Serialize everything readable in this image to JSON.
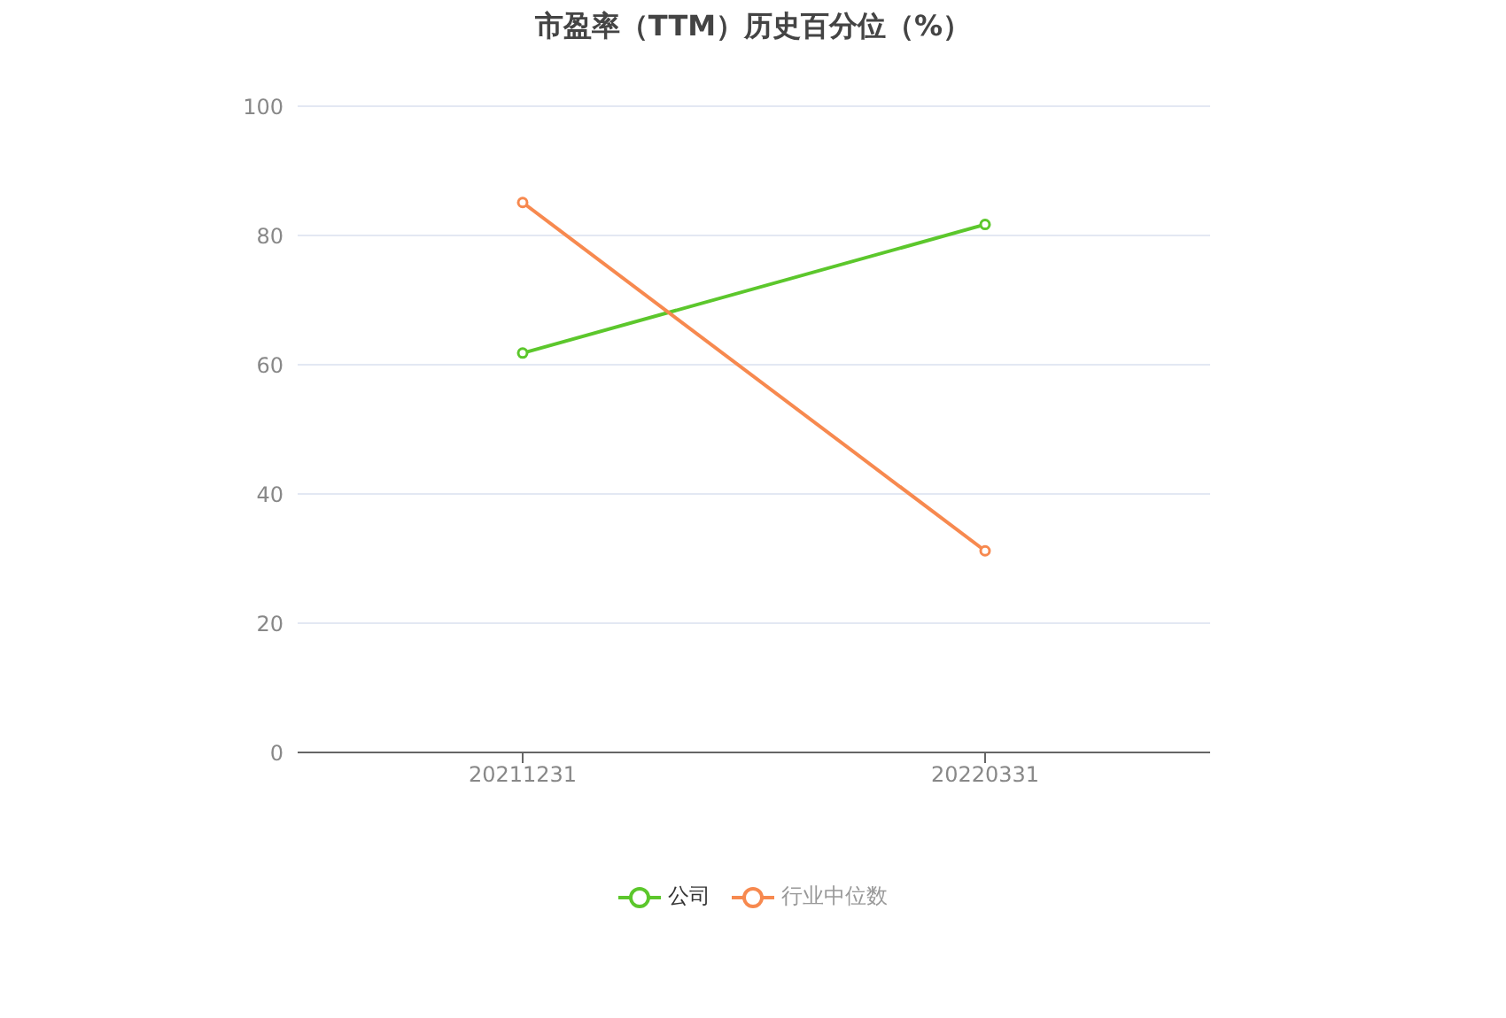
{
  "chart_data": {
    "type": "line",
    "title": "市盈率（TTM）历史百分位（%）",
    "categories": [
      "20211231",
      "20220331"
    ],
    "series": [
      {
        "name": "公司",
        "color": "#5cc72c",
        "values": [
          61.8,
          81.7
        ]
      },
      {
        "name": "行业中位数",
        "color": "#f7894f",
        "values": [
          85.1,
          31.2
        ]
      }
    ],
    "ylim": [
      0,
      100
    ],
    "yticks": [
      0,
      20,
      40,
      60,
      80,
      100
    ],
    "grid": "y",
    "legend": "bottom",
    "marker": "circle",
    "line_style": "solid"
  }
}
